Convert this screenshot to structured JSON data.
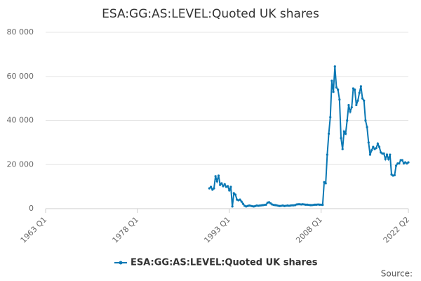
{
  "chart_data": {
    "type": "line",
    "title": "ESA:GG:AS:LEVEL:Quoted UK shares",
    "source": "Source:",
    "x": [
      "1989 Q4",
      "1990 Q1",
      "1990 Q2",
      "1990 Q3",
      "1990 Q4",
      "1991 Q1",
      "1991 Q2",
      "1991 Q3",
      "1991 Q4",
      "1992 Q1",
      "1992 Q2",
      "1992 Q3",
      "1992 Q4",
      "1993 Q1",
      "1993 Q2",
      "1993 Q3",
      "1993 Q4",
      "1994 Q1",
      "1994 Q2",
      "1994 Q3",
      "1994 Q4",
      "1995 Q1",
      "1995 Q2",
      "1995 Q3",
      "1995 Q4",
      "1996 Q1",
      "1996 Q2",
      "1996 Q3",
      "1996 Q4",
      "1997 Q1",
      "1997 Q2",
      "1997 Q3",
      "1997 Q4",
      "1998 Q1",
      "1998 Q2",
      "1998 Q3",
      "1998 Q4",
      "1999 Q1",
      "1999 Q2",
      "1999 Q3",
      "1999 Q4",
      "2000 Q1",
      "2000 Q2",
      "2000 Q3",
      "2000 Q4",
      "2001 Q1",
      "2001 Q2",
      "2001 Q3",
      "2001 Q4",
      "2002 Q1",
      "2002 Q2",
      "2002 Q3",
      "2002 Q4",
      "2003 Q1",
      "2003 Q2",
      "2003 Q3",
      "2003 Q4",
      "2004 Q1",
      "2004 Q2",
      "2004 Q3",
      "2004 Q4",
      "2005 Q1",
      "2005 Q2",
      "2005 Q3",
      "2005 Q4",
      "2006 Q1",
      "2006 Q2",
      "2006 Q3",
      "2006 Q4",
      "2007 Q1",
      "2007 Q2",
      "2007 Q3",
      "2007 Q4",
      "2008 Q1",
      "2008 Q2",
      "2008 Q3",
      "2008 Q4",
      "2009 Q1",
      "2009 Q2",
      "2009 Q3",
      "2009 Q4",
      "2010 Q1",
      "2010 Q2",
      "2010 Q3",
      "2010 Q4",
      "2011 Q1",
      "2011 Q2",
      "2011 Q3",
      "2011 Q4",
      "2012 Q1",
      "2012 Q2",
      "2012 Q3",
      "2012 Q4",
      "2013 Q1",
      "2013 Q2",
      "2013 Q3",
      "2013 Q4",
      "2014 Q1",
      "2014 Q2",
      "2014 Q3",
      "2014 Q4",
      "2015 Q1",
      "2015 Q2",
      "2015 Q3",
      "2015 Q4",
      "2016 Q1",
      "2016 Q2",
      "2016 Q3",
      "2016 Q4",
      "2017 Q1",
      "2017 Q2",
      "2017 Q3",
      "2017 Q4",
      "2018 Q1",
      "2018 Q2",
      "2018 Q3",
      "2018 Q4",
      "2019 Q1",
      "2019 Q2",
      "2019 Q3",
      "2019 Q4",
      "2020 Q1",
      "2020 Q2",
      "2020 Q3",
      "2020 Q4",
      "2021 Q1",
      "2021 Q2",
      "2021 Q3",
      "2021 Q4",
      "2022 Q1",
      "2022 Q2"
    ],
    "series": [
      {
        "name": "ESA:GG:AS:LEVEL:Quoted UK shares",
        "color": "#0a78b4",
        "values": [
          9200,
          9900,
          8600,
          9200,
          14700,
          12400,
          15000,
          10800,
          11500,
          10200,
          11100,
          9900,
          10200,
          8300,
          9900,
          1000,
          7000,
          6400,
          4100,
          3800,
          4100,
          3200,
          2200,
          1300,
          1000,
          1200,
          1400,
          1300,
          1100,
          1000,
          1200,
          1400,
          1300,
          1400,
          1500,
          1600,
          1700,
          1800,
          2700,
          2900,
          2400,
          1900,
          1700,
          1600,
          1500,
          1300,
          1200,
          1300,
          1400,
          1200,
          1300,
          1400,
          1300,
          1400,
          1500,
          1500,
          1600,
          1900,
          2000,
          2000,
          1900,
          2000,
          1900,
          1800,
          1800,
          1700,
          1600,
          1600,
          1700,
          1800,
          1800,
          1900,
          1800,
          1800,
          1700,
          12000,
          11500,
          24500,
          34000,
          41500,
          58000,
          53000,
          64500,
          55000,
          54000,
          49500,
          32000,
          27000,
          35000,
          34000,
          40000,
          47000,
          44000,
          46000,
          54500,
          54000,
          47000,
          49000,
          52500,
          55500,
          50000,
          49000,
          40000,
          37000,
          30000,
          24500,
          26500,
          28000,
          27000,
          27500,
          29500,
          28000,
          25500,
          25000,
          25000,
          22500,
          24500,
          22500,
          24500,
          15500,
          15000,
          15200,
          19500,
          20500,
          20500,
          22000,
          22000,
          20500,
          21000,
          20500,
          21000
        ]
      }
    ],
    "xlim": [
      "1963 Q1",
      "2022 Q2"
    ],
    "xticks": [
      "1963 Q1",
      "1978 Q1",
      "1993 Q1",
      "2008 Q1",
      "2022 Q2"
    ],
    "ylim": [
      0,
      80000
    ],
    "yticks": [
      {
        "value": 0,
        "label": "0"
      },
      {
        "value": 20000,
        "label": "20 000"
      },
      {
        "value": 40000,
        "label": "40 000"
      },
      {
        "value": 60000,
        "label": "60 000"
      },
      {
        "value": 80000,
        "label": "80 000"
      }
    ],
    "grid": true,
    "legend": "bottom"
  }
}
